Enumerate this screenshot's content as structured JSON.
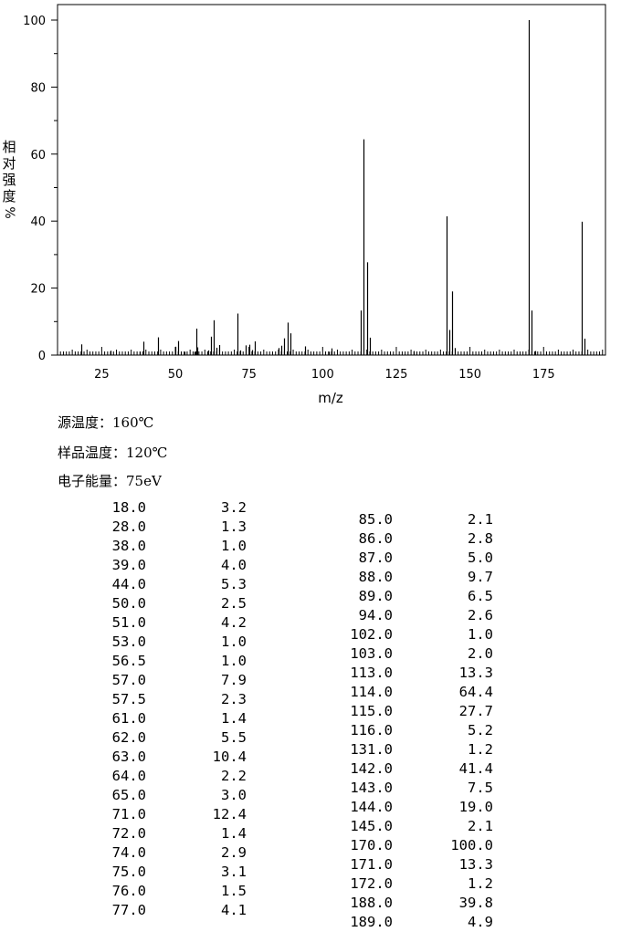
{
  "chart_data": {
    "type": "bar",
    "xlabel": "m/z",
    "ylabel_chars": [
      "相",
      "对",
      "强",
      "度"
    ],
    "ylabel_unit": "%",
    "xlim": [
      10,
      196
    ],
    "ylim": [
      0,
      100
    ],
    "xticks": [
      25,
      50,
      75,
      100,
      125,
      150,
      175
    ],
    "yticks": [
      0,
      20,
      40,
      60,
      80,
      100
    ],
    "peaks_mz": [
      18,
      28,
      38,
      39,
      44,
      50,
      51,
      53,
      56.5,
      57,
      57.5,
      61,
      62,
      63,
      64,
      65,
      71,
      72,
      74,
      75,
      76,
      77,
      85,
      86,
      87,
      88,
      89,
      94,
      102,
      103,
      113,
      114,
      115,
      116,
      131,
      142,
      143,
      144,
      145,
      170,
      171,
      172,
      188,
      189
    ],
    "peaks_intensity": [
      3.2,
      1.3,
      1.0,
      4.0,
      5.3,
      2.5,
      4.2,
      1.0,
      1.0,
      7.9,
      2.3,
      1.4,
      5.5,
      10.4,
      2.2,
      3.0,
      12.4,
      1.4,
      2.9,
      3.1,
      1.5,
      4.1,
      2.1,
      2.8,
      5.0,
      9.7,
      6.5,
      2.6,
      1.0,
      2.0,
      13.3,
      64.4,
      27.7,
      5.2,
      1.2,
      41.4,
      7.5,
      19.0,
      2.1,
      100.0,
      13.3,
      1.2,
      39.8,
      4.9
    ],
    "grid": false
  },
  "conditions": {
    "source_temp": "源温度：160℃",
    "sample_temp": "样品温度：120℃",
    "electron_energy": "电子能量：75eV"
  },
  "table_left": [
    {
      "mz": "18.0",
      "intensity": "3.2"
    },
    {
      "mz": "28.0",
      "intensity": "1.3"
    },
    {
      "mz": "38.0",
      "intensity": "1.0"
    },
    {
      "mz": "39.0",
      "intensity": "4.0"
    },
    {
      "mz": "44.0",
      "intensity": "5.3"
    },
    {
      "mz": "50.0",
      "intensity": "2.5"
    },
    {
      "mz": "51.0",
      "intensity": "4.2"
    },
    {
      "mz": "53.0",
      "intensity": "1.0"
    },
    {
      "mz": "56.5",
      "intensity": "1.0"
    },
    {
      "mz": "57.0",
      "intensity": "7.9"
    },
    {
      "mz": "57.5",
      "intensity": "2.3"
    },
    {
      "mz": "61.0",
      "intensity": "1.4"
    },
    {
      "mz": "62.0",
      "intensity": "5.5"
    },
    {
      "mz": "63.0",
      "intensity": "10.4"
    },
    {
      "mz": "64.0",
      "intensity": "2.2"
    },
    {
      "mz": "65.0",
      "intensity": "3.0"
    },
    {
      "mz": "71.0",
      "intensity": "12.4"
    },
    {
      "mz": "72.0",
      "intensity": "1.4"
    },
    {
      "mz": "74.0",
      "intensity": "2.9"
    },
    {
      "mz": "75.0",
      "intensity": "3.1"
    },
    {
      "mz": "76.0",
      "intensity": "1.5"
    },
    {
      "mz": "77.0",
      "intensity": "4.1"
    }
  ],
  "table_right": [
    {
      "mz": "85.0",
      "intensity": "2.1"
    },
    {
      "mz": "86.0",
      "intensity": "2.8"
    },
    {
      "mz": "87.0",
      "intensity": "5.0"
    },
    {
      "mz": "88.0",
      "intensity": "9.7"
    },
    {
      "mz": "89.0",
      "intensity": "6.5"
    },
    {
      "mz": "94.0",
      "intensity": "2.6"
    },
    {
      "mz": "102.0",
      "intensity": "1.0"
    },
    {
      "mz": "103.0",
      "intensity": "2.0"
    },
    {
      "mz": "113.0",
      "intensity": "13.3"
    },
    {
      "mz": "114.0",
      "intensity": "64.4"
    },
    {
      "mz": "115.0",
      "intensity": "27.7"
    },
    {
      "mz": "116.0",
      "intensity": "5.2"
    },
    {
      "mz": "131.0",
      "intensity": "1.2"
    },
    {
      "mz": "142.0",
      "intensity": "41.4"
    },
    {
      "mz": "143.0",
      "intensity": "7.5"
    },
    {
      "mz": "144.0",
      "intensity": "19.0"
    },
    {
      "mz": "145.0",
      "intensity": "2.1"
    },
    {
      "mz": "170.0",
      "intensity": "100.0"
    },
    {
      "mz": "171.0",
      "intensity": "13.3"
    },
    {
      "mz": "172.0",
      "intensity": "1.2"
    },
    {
      "mz": "188.0",
      "intensity": "39.8"
    },
    {
      "mz": "189.0",
      "intensity": "4.9"
    }
  ]
}
